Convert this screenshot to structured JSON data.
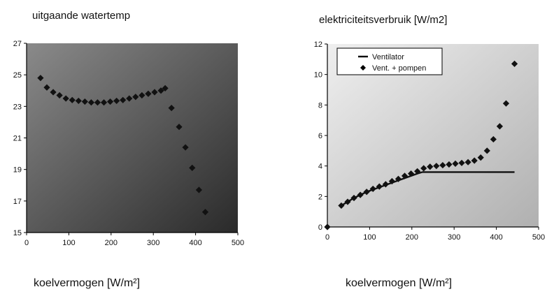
{
  "chart_data": [
    {
      "type": "scatter",
      "title": "uitgaande watertemp",
      "xlabel": "koelvermogen [W/m²]",
      "ylabel": "",
      "xlim": [
        0,
        500
      ],
      "ylim": [
        15,
        27
      ],
      "xticks": [
        "0",
        "100",
        "200",
        "300",
        "400",
        "500"
      ],
      "yticks": [
        "15",
        "17",
        "19",
        "21",
        "23",
        "25",
        "27"
      ],
      "grid": false,
      "legend": "none",
      "colors": {
        "marker": "#111111",
        "bg_light": "#8a8a8a",
        "bg_dark": "#2a2a2a"
      },
      "series": [
        {
          "x": [
            33,
            48,
            63,
            78,
            93,
            108,
            123,
            138,
            153,
            168,
            183,
            198,
            213,
            228,
            243,
            258,
            273,
            288,
            303,
            318,
            328,
            343,
            361,
            376,
            392,
            408,
            423
          ],
          "y": [
            24.8,
            24.2,
            23.9,
            23.7,
            23.5,
            23.4,
            23.35,
            23.3,
            23.25,
            23.25,
            23.25,
            23.3,
            23.35,
            23.4,
            23.5,
            23.6,
            23.7,
            23.8,
            23.9,
            24.0,
            24.15,
            22.9,
            21.7,
            20.4,
            19.1,
            17.7,
            16.3
          ]
        }
      ]
    },
    {
      "type": "scatter",
      "title": "elektriciteitsverbruik [W/m2]",
      "xlabel": "koelvermogen [W/m²]",
      "ylabel": "",
      "xlim": [
        0,
        500
      ],
      "ylim": [
        0,
        12
      ],
      "xticks": [
        "0",
        "100",
        "200",
        "300",
        "400",
        "500"
      ],
      "yticks": [
        "0",
        "2",
        "4",
        "6",
        "8",
        "10",
        "12"
      ],
      "grid": false,
      "legend": "top-left",
      "colors": {
        "marker": "#111111",
        "bg_light": "#efefef",
        "bg_dark": "#b0b0b0"
      },
      "series": [
        {
          "name": "Ventilator",
          "style": "line",
          "x": [
            33,
            63,
            93,
            123,
            153,
            183,
            213,
            225,
            260,
            300,
            340,
            380,
            420,
            443
          ],
          "y": [
            1.4,
            1.9,
            2.3,
            2.6,
            2.9,
            3.2,
            3.5,
            3.6,
            3.6,
            3.6,
            3.6,
            3.6,
            3.6,
            3.6
          ]
        },
        {
          "name": "Vent. + pompen",
          "style": "markers",
          "x": [
            0,
            33,
            48,
            63,
            78,
            93,
            108,
            123,
            138,
            153,
            168,
            183,
            198,
            213,
            228,
            243,
            258,
            273,
            288,
            303,
            318,
            333,
            348,
            363,
            378,
            393,
            408,
            423,
            443
          ],
          "y": [
            0,
            1.4,
            1.65,
            1.9,
            2.1,
            2.3,
            2.5,
            2.65,
            2.8,
            3.0,
            3.15,
            3.35,
            3.5,
            3.65,
            3.85,
            3.95,
            4.0,
            4.05,
            4.1,
            4.15,
            4.2,
            4.25,
            4.35,
            4.55,
            5.0,
            5.75,
            6.6,
            8.1,
            10.7
          ]
        }
      ]
    }
  ]
}
